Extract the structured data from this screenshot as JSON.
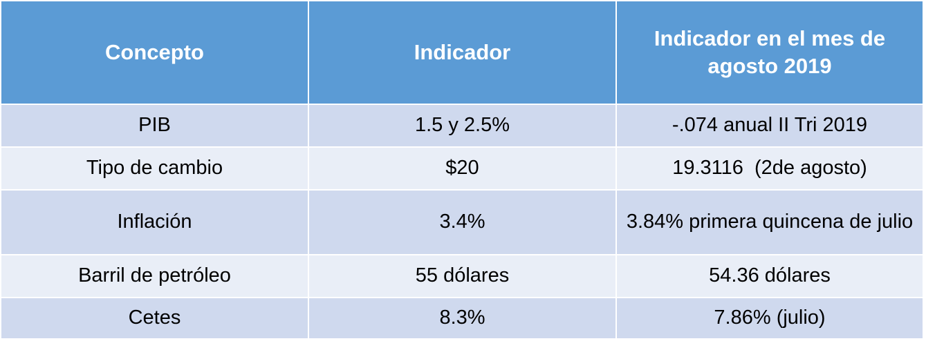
{
  "table": {
    "header": [
      "Concepto",
      "Indicador",
      "Indicador en el mes de agosto 2019"
    ],
    "rows": [
      [
        "PIB",
        "1.5 y 2.5%",
        "-.074 anual II Tri 2019"
      ],
      [
        "Tipo de cambio",
        "$20",
        "19.3116  (2de agosto)"
      ],
      [
        "Inflación",
        "3.4%",
        "3.84% primera quincena de julio"
      ],
      [
        "Barril de petróleo",
        "55 dólares",
        "54.36 dólares"
      ],
      [
        "Cetes",
        "8.3%",
        "7.86% (julio)"
      ]
    ]
  }
}
